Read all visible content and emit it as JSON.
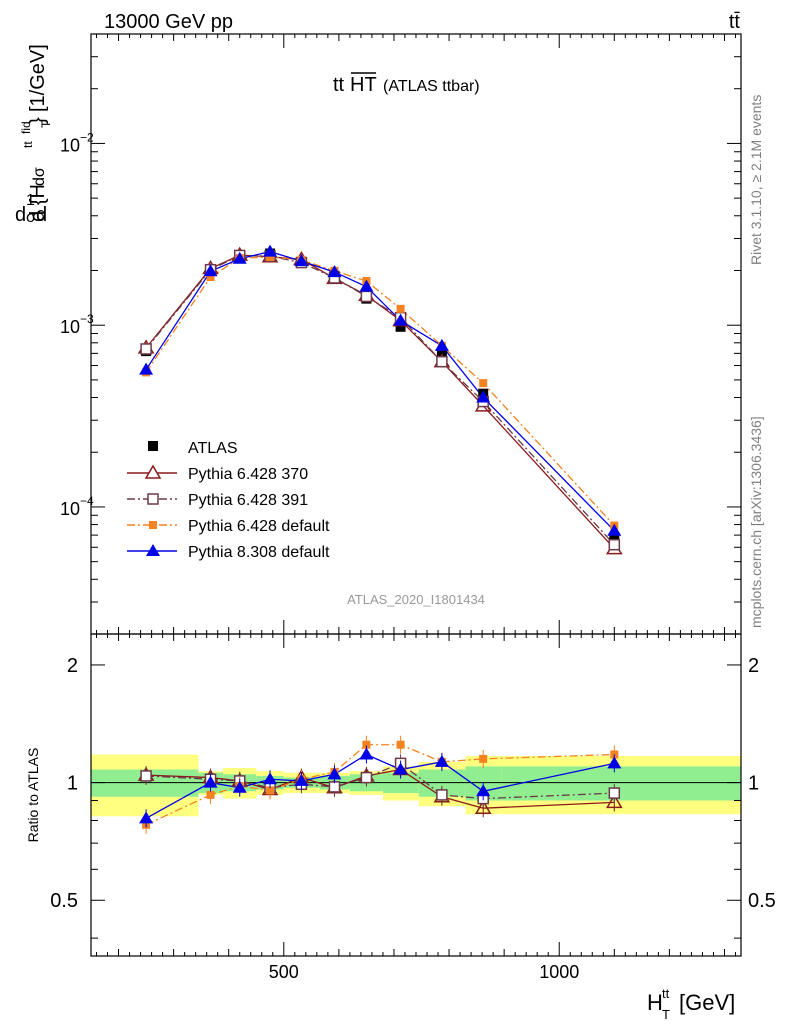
{
  "header": {
    "energy_label": "13000 GeV pp",
    "process_label": "tt̄"
  },
  "side_labels": {
    "rivet": "Rivet 3.1.10, ≥ 2.1M events",
    "mcplots": "mcplots.cern.ch [arXiv:1306.3436]"
  },
  "chart_data": [
    {
      "type": "line",
      "title_main": "tt",
      "title_over": "HT",
      "title_sub": "(ATLAS ttbar)",
      "analysis_label": "ATLAS_2020_I1801434",
      "ylabel_parts": [
        "d",
        "1",
        "σ",
        "d",
        "dσ",
        "fid",
        "d {H",
        "tt",
        "T",
        "}",
        "[1/GeV]"
      ],
      "yscale": "log",
      "ylim": [
        2e-05,
        0.04
      ],
      "xlim": [
        150,
        1330
      ],
      "y_ticks": [
        {
          "value": 0.0001,
          "base": "10",
          "exp": "−4"
        },
        {
          "value": 0.001,
          "base": "10",
          "exp": "−3"
        },
        {
          "value": 0.01,
          "base": "10",
          "exp": "−2"
        }
      ],
      "legend_position": "lower-left",
      "x": [
        250,
        367,
        420,
        475,
        532,
        592,
        650,
        712,
        787,
        862,
        1100
      ],
      "series": [
        {
          "name": "ATLAS",
          "color": "#000000",
          "marker": "square-filled",
          "line": "none",
          "values": [
            0.00072,
            0.00199,
            0.0024,
            0.00248,
            0.00223,
            0.00187,
            0.0014,
            0.00098,
            0.00068,
            0.00042,
            6.6e-05
          ]
        },
        {
          "name": "Pythia 6.428 370",
          "color": "#8b1a1a",
          "marker": "triangle-open",
          "line": "solid",
          "values": [
            0.00075,
            0.00205,
            0.00243,
            0.00238,
            0.0023,
            0.00181,
            0.00146,
            0.00106,
            0.00063,
            0.00036,
            5.9e-05
          ]
        },
        {
          "name": "Pythia 6.428 391",
          "color": "#6b3a4a",
          "marker": "square-open",
          "line": "dashdot",
          "values": [
            0.00074,
            0.00202,
            0.00242,
            0.0024,
            0.00221,
            0.00182,
            0.00144,
            0.0011,
            0.00063,
            0.00038,
            6.2e-05
          ]
        },
        {
          "name": "Pythia 6.428 default",
          "color": "#f58220",
          "marker": "square-filled",
          "line": "dashdot",
          "values": [
            0.00055,
            0.00184,
            0.00234,
            0.00237,
            0.00229,
            0.00199,
            0.00175,
            0.00123,
            0.00077,
            0.00048,
            7.9e-05
          ]
        },
        {
          "name": "Pythia 8.308 default",
          "color": "#0000e6",
          "marker": "triangle-filled",
          "line": "solid",
          "values": [
            0.00057,
            0.00198,
            0.00232,
            0.00254,
            0.00225,
            0.00196,
            0.00163,
            0.00106,
            0.00077,
            0.0004,
            7.4e-05
          ]
        }
      ]
    },
    {
      "type": "line",
      "ylabel": "Ratio to ATLAS",
      "xlabel_base": "H",
      "xlabel_sup": "tt",
      "xlabel_sub": "T",
      "xlabel_unit": "[GeV]",
      "ylim": [
        0.36,
        2.4
      ],
      "yscale": "log",
      "xlim": [
        150,
        1330
      ],
      "x_ticks": [
        {
          "value": 500,
          "label": "500"
        },
        {
          "value": 1000,
          "label": "1000"
        }
      ],
      "y_ticks": [
        {
          "value": 0.5,
          "label": "0.5"
        },
        {
          "value": 1,
          "label": "1"
        },
        {
          "value": 2,
          "label": "2"
        }
      ],
      "bins": [
        150,
        345,
        390,
        450,
        500,
        565,
        620,
        680,
        745,
        830,
        895,
        1330
      ],
      "band_inner": [
        0.08,
        0.06,
        0.05,
        0.04,
        0.03,
        0.04,
        0.05,
        0.06,
        0.08,
        0.1,
        0.1
      ],
      "band_outer": [
        0.18,
        0.07,
        0.09,
        0.07,
        0.06,
        0.06,
        0.07,
        0.1,
        0.13,
        0.17,
        0.17
      ],
      "x": [
        250,
        367,
        420,
        475,
        532,
        592,
        650,
        712,
        787,
        862,
        1100
      ],
      "series": [
        {
          "name": "Pythia 6.428 370",
          "color": "#8b1a1a",
          "marker": "triangle-open",
          "line": "solid",
          "values": [
            1.045,
            1.03,
            1.01,
            0.96,
            1.03,
            0.97,
            1.04,
            1.08,
            0.92,
            0.86,
            0.89
          ]
        },
        {
          "name": "Pythia 6.428 391",
          "color": "#6b3a4a",
          "marker": "square-open",
          "line": "dashdot",
          "values": [
            1.04,
            1.02,
            1.01,
            0.97,
            0.99,
            0.975,
            1.03,
            1.12,
            0.93,
            0.91,
            0.94
          ]
        },
        {
          "name": "Pythia 6.428 default",
          "color": "#f58220",
          "marker": "square-filled",
          "line": "dashdot",
          "values": [
            0.78,
            0.93,
            0.98,
            0.955,
            1.02,
            1.065,
            1.25,
            1.25,
            1.13,
            1.15,
            1.18
          ]
        },
        {
          "name": "Pythia 8.308 default",
          "color": "#0000e6",
          "marker": "triangle-filled",
          "line": "solid",
          "values": [
            0.81,
            1.0,
            0.97,
            1.02,
            1.01,
            1.05,
            1.18,
            1.08,
            1.13,
            0.95,
            1.12
          ]
        }
      ]
    }
  ]
}
